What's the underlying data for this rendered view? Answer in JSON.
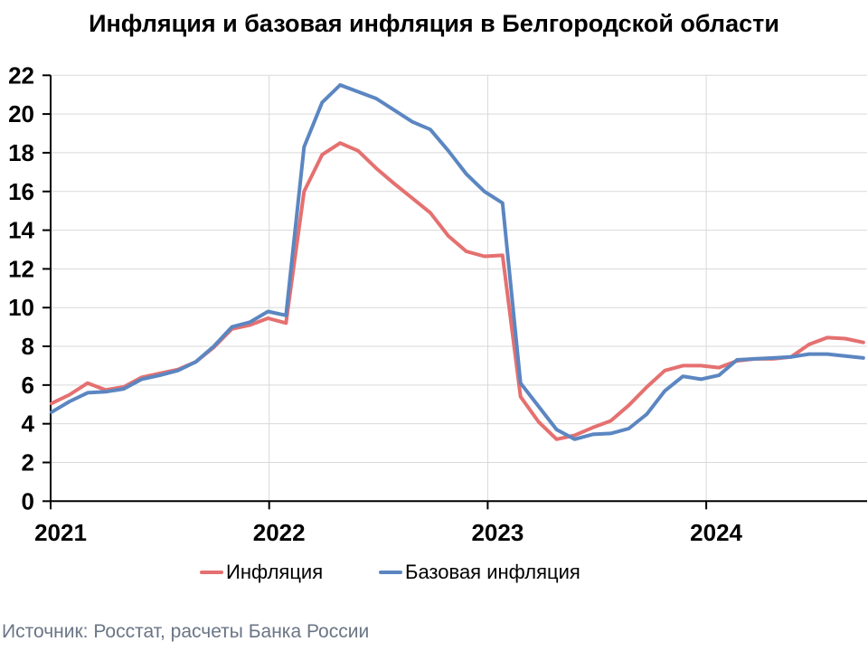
{
  "title": "Инфляция и базовая инфляция в Белгородской области",
  "source_note": "Источник: Росстат, расчеты Банка России",
  "legend": [
    {
      "slug": "inflation",
      "label": "Инфляция",
      "color": "#e57070"
    },
    {
      "slug": "core-inflation",
      "label": "Базовая инфляция",
      "color": "#5b86c1"
    }
  ],
  "colors": {
    "background": "#ffffff",
    "axis": "#000000",
    "gridline": "#d9d9d9",
    "tick_label": "#000000",
    "source_text": "#6a7585",
    "inflation_line": "#e57070",
    "core_inflation_line": "#5b86c1"
  },
  "chart_data": {
    "type": "line",
    "title": "Инфляция и базовая инфляция в Белгородской области",
    "xlabel": "",
    "ylabel": "",
    "ylim": [
      0,
      22
    ],
    "yticks": [
      0,
      2,
      4,
      6,
      8,
      10,
      12,
      14,
      16,
      18,
      20,
      22
    ],
    "grid": true,
    "legend_position": "bottom",
    "x": [
      "2021-01",
      "2021-02",
      "2021-03",
      "2021-04",
      "2021-05",
      "2021-06",
      "2021-07",
      "2021-08",
      "2021-09",
      "2021-10",
      "2021-11",
      "2021-12",
      "2022-01",
      "2022-02",
      "2022-03",
      "2022-04",
      "2022-05",
      "2022-06",
      "2022-07",
      "2022-08",
      "2022-09",
      "2022-10",
      "2022-11",
      "2022-12",
      "2023-01",
      "2023-02",
      "2023-03",
      "2023-04",
      "2023-05",
      "2023-06",
      "2023-07",
      "2023-08",
      "2023-09",
      "2023-10",
      "2023-11",
      "2023-12",
      "2024-01",
      "2024-02",
      "2024-03",
      "2024-04",
      "2024-05",
      "2024-06",
      "2024-07",
      "2024-08",
      "2024-09",
      "2024-10"
    ],
    "xticks": [
      {
        "label": "2021",
        "month_index": 0
      },
      {
        "label": "2022",
        "month_index": 12
      },
      {
        "label": "2023",
        "month_index": 24
      },
      {
        "label": "2024",
        "month_index": 36
      }
    ],
    "series": [
      {
        "name": "Инфляция",
        "slug": "inflation",
        "color": "#e57070",
        "values": [
          5.05,
          5.5,
          6.1,
          5.75,
          5.9,
          6.4,
          6.6,
          6.8,
          7.2,
          7.95,
          8.9,
          9.1,
          9.45,
          9.2,
          16.0,
          17.9,
          18.5,
          18.1,
          17.2,
          16.4,
          15.65,
          14.9,
          13.7,
          12.9,
          12.65,
          12.7,
          5.4,
          4.1,
          3.2,
          3.4,
          3.8,
          4.15,
          4.95,
          5.9,
          6.75,
          7.0,
          7.0,
          6.9,
          7.25,
          7.35,
          7.35,
          7.45,
          8.1,
          8.45,
          8.4,
          8.2
        ]
      },
      {
        "name": "Базовая инфляция",
        "slug": "core-inflation",
        "color": "#5b86c1",
        "values": [
          4.6,
          5.15,
          5.6,
          5.65,
          5.8,
          6.3,
          6.5,
          6.75,
          7.2,
          8.0,
          9.0,
          9.25,
          9.8,
          9.6,
          18.3,
          20.6,
          21.5,
          21.15,
          20.8,
          20.2,
          19.6,
          19.2,
          18.1,
          16.9,
          16.0,
          15.4,
          6.1,
          4.9,
          3.7,
          3.2,
          3.45,
          3.5,
          3.75,
          4.5,
          5.7,
          6.45,
          6.3,
          6.5,
          7.3,
          7.35,
          7.4,
          7.45,
          7.6,
          7.6,
          7.5,
          7.4
        ]
      }
    ]
  }
}
